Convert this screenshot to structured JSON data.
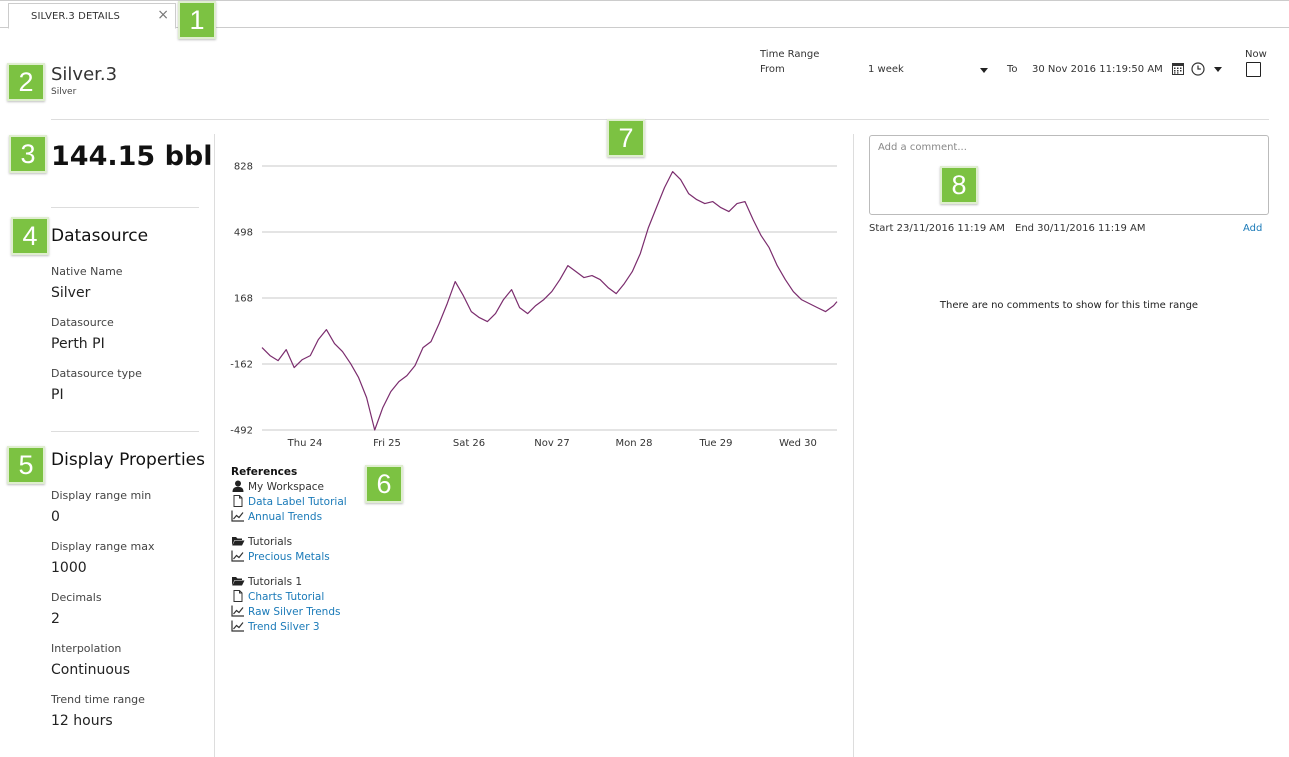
{
  "tab": {
    "label": "SILVER.3 DETAILS",
    "close": "×"
  },
  "header": {
    "title": "Silver.3",
    "subtitle": "Silver"
  },
  "time_range": {
    "label": "Time Range",
    "from_label": "From",
    "from_value": "1 week",
    "to_label": "To",
    "to_value": "30 Nov 2016 11:19:50 AM",
    "now_label": "Now",
    "now_checked": false
  },
  "current_value": "144.15 bbl",
  "datasource": {
    "title": "Datasource",
    "items": [
      {
        "label": "Native Name",
        "value": "Silver"
      },
      {
        "label": "Datasource",
        "value": "Perth PI"
      },
      {
        "label": "Datasource type",
        "value": "PI"
      }
    ]
  },
  "display_properties": {
    "title": "Display Properties",
    "items": [
      {
        "label": "Display range min",
        "value": "0"
      },
      {
        "label": "Display range max",
        "value": "1000"
      },
      {
        "label": "Decimals",
        "value": "2"
      },
      {
        "label": "Interpolation",
        "value": "Continuous"
      },
      {
        "label": "Trend time range",
        "value": "12 hours"
      }
    ]
  },
  "references": {
    "title": "References",
    "groups": [
      {
        "name": "My Workspace",
        "icon": "user-icon",
        "items": [
          {
            "label": "Data Label Tutorial",
            "icon": "document-icon"
          },
          {
            "label": "Annual Trends",
            "icon": "trend-icon"
          }
        ]
      },
      {
        "name": "Tutorials",
        "icon": "folder-open-icon",
        "items": [
          {
            "label": "Precious Metals",
            "icon": "trend-icon"
          }
        ]
      },
      {
        "name": "Tutorials 1",
        "icon": "folder-open-icon",
        "items": [
          {
            "label": "Charts Tutorial",
            "icon": "document-icon"
          },
          {
            "label": "Raw Silver Trends",
            "icon": "trend-icon"
          },
          {
            "label": "Trend Silver 3",
            "icon": "trend-icon"
          }
        ]
      }
    ]
  },
  "comments": {
    "placeholder": "Add a comment...",
    "start": "Start 23/11/2016 11:19 AM",
    "end": "End 30/11/2016 11:19 AM",
    "add_label": "Add",
    "empty_message": "There are no comments to show for this time range"
  },
  "badges": [
    "1",
    "2",
    "3",
    "4",
    "5",
    "6",
    "7",
    "8"
  ],
  "colors": {
    "accent_link": "#1a7ab8",
    "badge": "#7cc242",
    "series": "#7b2d6e"
  },
  "chart_data": {
    "type": "line",
    "y_ticks": [
      828,
      498,
      168,
      -162,
      -492
    ],
    "ylim": [
      -492,
      828
    ],
    "x_tick_labels": [
      "Thu 24",
      "Fri 25",
      "Sat 26",
      "Nov 27",
      "Mon 28",
      "Tue 29",
      "Wed 30"
    ],
    "xlim": [
      0,
      100
    ],
    "grid": true,
    "series": [
      {
        "x": [
          0,
          1.4,
          2.8,
          4.2,
          5.6,
          7,
          8.4,
          9.8,
          11.2,
          12.6,
          14,
          15.4,
          16.8,
          18.2,
          19.6,
          21,
          22.4,
          23.8,
          25.2,
          26.6,
          28,
          29.4,
          30.8,
          32.2,
          33.6,
          35,
          36.4,
          37.8,
          39.2,
          40.6,
          42,
          43.4,
          44.8,
          46.2,
          47.6,
          49,
          50.4,
          51.8,
          53.2,
          54.6,
          56,
          57.4,
          58.8,
          60.2,
          61.6,
          63,
          64.4,
          65.8,
          67.2,
          68.6,
          70,
          71.4,
          72.8,
          74.2,
          75.6,
          77,
          78.4,
          79.8,
          81.2,
          82.6,
          84,
          85.4,
          86.8,
          88.2,
          89.6,
          91,
          92.4,
          93.8,
          95.2,
          96.6,
          98,
          99.4,
          100
        ],
        "y": [
          -80,
          -120,
          -145,
          -90,
          -180,
          -140,
          -120,
          -40,
          10,
          -60,
          -100,
          -160,
          -230,
          -330,
          -492,
          -380,
          -300,
          -250,
          -220,
          -170,
          -80,
          -50,
          40,
          140,
          250,
          180,
          100,
          70,
          50,
          90,
          160,
          210,
          120,
          90,
          130,
          160,
          200,
          260,
          330,
          300,
          270,
          280,
          260,
          220,
          190,
          240,
          300,
          390,
          520,
          620,
          720,
          800,
          760,
          690,
          660,
          640,
          650,
          620,
          600,
          640,
          650,
          560,
          480,
          420,
          330,
          260,
          200,
          160,
          140,
          120,
          100,
          130,
          150
        ]
      }
    ]
  }
}
